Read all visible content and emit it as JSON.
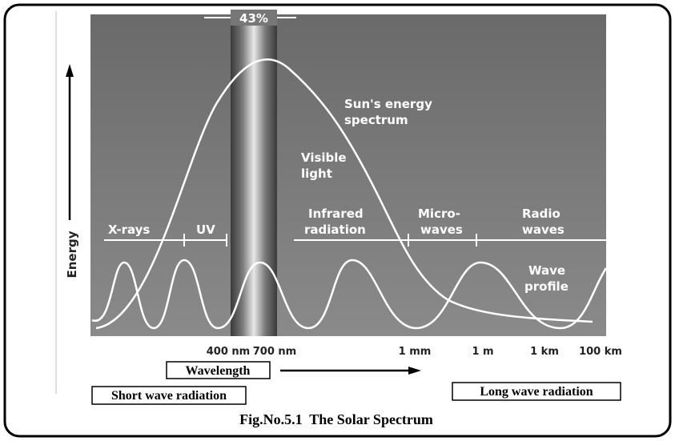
{
  "figure": {
    "peak_label": "43%",
    "sun_curve_label": [
      "Sun's energy",
      "spectrum"
    ],
    "visible_label": [
      "Visible",
      "light"
    ],
    "regions": [
      "X-rays",
      "UV",
      [
        "Infrared",
        "radiation"
      ],
      [
        "Micro-",
        "waves"
      ],
      [
        "Radio",
        "waves"
      ]
    ],
    "wave_label": [
      "Wave",
      "profile"
    ],
    "y_label": "Energy",
    "x_ticks": [
      "400 nm",
      "700 nm",
      "1 mm",
      "1 m",
      "1 km",
      "100 km"
    ],
    "x_label": "Wavelength",
    "short_wave": "Short wave radiation",
    "long_wave": "Long wave radiation",
    "caption": "Fig.No.5.1  The Solar Spectrum"
  }
}
